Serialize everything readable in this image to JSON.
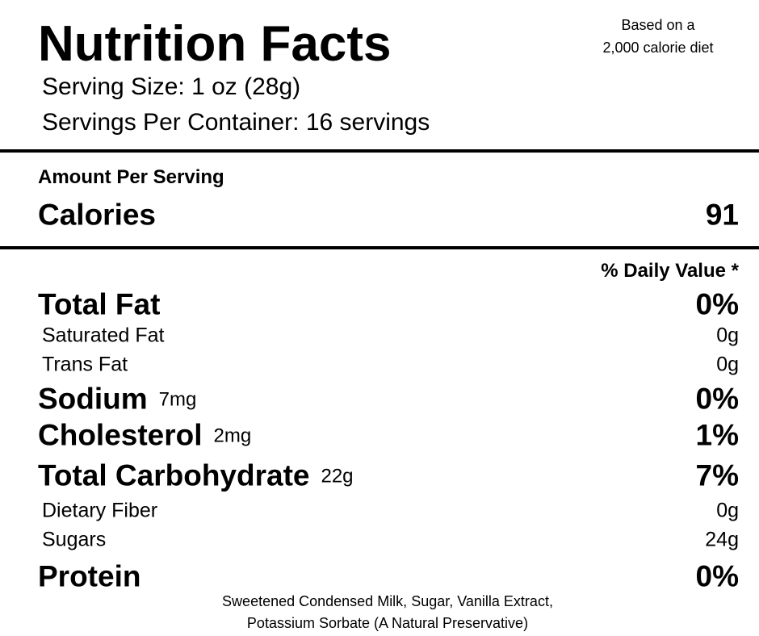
{
  "header": {
    "title": "Nutrition Facts",
    "note": [
      "Based on a",
      "2,000 calorie diet"
    ],
    "serving_size": "Serving Size: 1 oz (28g)",
    "servings_per_container": "Servings Per Container: 16 servings"
  },
  "amount_per_serving": "Amount Per Serving",
  "calories": {
    "label": "Calories",
    "value": "91"
  },
  "daily_value_header": "% Daily Value *",
  "nutrients": [
    {
      "name": "Total Fat",
      "value": "0%"
    },
    {
      "name": "Saturated Fat",
      "value": "0g"
    },
    {
      "name": "Trans Fat",
      "value": "0g"
    },
    {
      "name": "Sodium",
      "amount": "7mg",
      "value": "0%"
    },
    {
      "name": "Cholesterol",
      "amount": "2mg",
      "value": "1%"
    },
    {
      "name": "Total Carbohydrate",
      "amount": "22g",
      "value": "7%"
    },
    {
      "name": "Dietary Fiber",
      "value": "0g"
    },
    {
      "name": "Sugars",
      "value": "24g"
    },
    {
      "name": "Protein",
      "value": "0%"
    }
  ],
  "ingredients": [
    "Sweetened Condensed Milk, Sugar, Vanilla Extract,",
    "Potassium Sorbate (A Natural Preservative)"
  ]
}
